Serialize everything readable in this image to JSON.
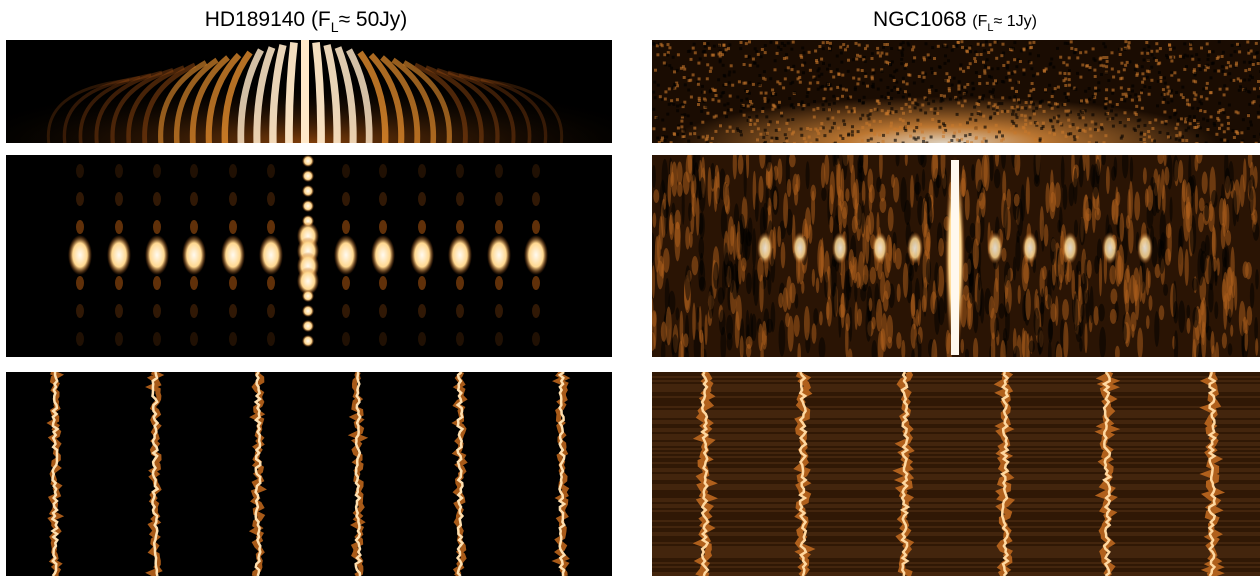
{
  "left": {
    "title_prefix": "HD189140 (F",
    "title_subscript": "L",
    "title_suffix": "≈ 50Jy)"
  },
  "right": {
    "title_name": "NGC1068 ",
    "title_prefix": "(F",
    "title_subscript": "L",
    "title_suffix": "≈ 1Jy)"
  }
}
